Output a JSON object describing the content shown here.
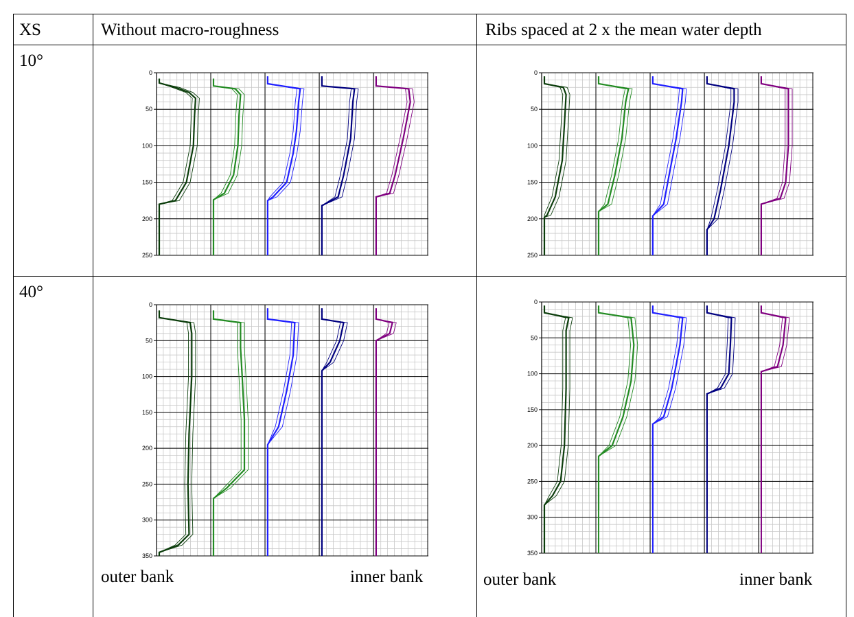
{
  "table": {
    "headers": [
      "XS",
      "Without macro-roughness",
      "Ribs spaced at 2 x the mean water depth"
    ],
    "rows": [
      {
        "label": "10°"
      },
      {
        "label": "40°"
      }
    ],
    "bank_labels": {
      "outer": "outer bank",
      "inner": "inner bank"
    }
  },
  "chart_data": [
    {
      "type": "line",
      "row": "10°",
      "column": "Without macro-roughness",
      "ylim": [
        0,
        250
      ],
      "y_ticks": [
        "0",
        "50",
        "100",
        "150",
        "200",
        "250"
      ],
      "y_inverted": true,
      "x_tick_labels_shown": false,
      "series": [
        {
          "color": "#0b3d0b",
          "bottom": 180,
          "profile": [
            [
              8,
              0.05
            ],
            [
              14,
              0.05
            ],
            [
              20,
              0.35
            ],
            [
              27,
              0.6
            ],
            [
              35,
              0.72
            ],
            [
              60,
              0.7
            ],
            [
              100,
              0.68
            ],
            [
              150,
              0.55
            ],
            [
              175,
              0.35
            ],
            [
              180,
              0.05
            ],
            [
              250,
              0.05
            ]
          ]
        },
        {
          "color": "#228b22",
          "bottom": 174,
          "profile": [
            [
              8,
              0.05
            ],
            [
              18,
              0.05
            ],
            [
              22,
              0.45
            ],
            [
              30,
              0.55
            ],
            [
              60,
              0.52
            ],
            [
              100,
              0.5
            ],
            [
              140,
              0.42
            ],
            [
              165,
              0.25
            ],
            [
              174,
              0.05
            ],
            [
              250,
              0.05
            ]
          ]
        },
        {
          "color": "#1f1fff",
          "bottom": 175,
          "profile": [
            [
              5,
              0.05
            ],
            [
              15,
              0.05
            ],
            [
              22,
              0.65
            ],
            [
              40,
              0.62
            ],
            [
              80,
              0.58
            ],
            [
              110,
              0.52
            ],
            [
              150,
              0.4
            ],
            [
              170,
              0.15
            ],
            [
              175,
              0.05
            ],
            [
              250,
              0.05
            ]
          ]
        },
        {
          "color": "#000080",
          "bottom": 182,
          "profile": [
            [
              5,
              0.05
            ],
            [
              18,
              0.05
            ],
            [
              22,
              0.65
            ],
            [
              40,
              0.62
            ],
            [
              90,
              0.58
            ],
            [
              140,
              0.45
            ],
            [
              170,
              0.35
            ],
            [
              182,
              0.05
            ],
            [
              250,
              0.05
            ]
          ]
        },
        {
          "color": "#800080",
          "bottom": 170,
          "profile": [
            [
              5,
              0.05
            ],
            [
              18,
              0.05
            ],
            [
              22,
              0.65
            ],
            [
              40,
              0.68
            ],
            [
              90,
              0.55
            ],
            [
              140,
              0.4
            ],
            [
              165,
              0.3
            ],
            [
              170,
              0.05
            ],
            [
              250,
              0.05
            ]
          ]
        }
      ]
    },
    {
      "type": "line",
      "row": "10°",
      "column": "Ribs spaced at 2 x the mean water depth",
      "ylim": [
        0,
        250
      ],
      "y_ticks": [
        "0",
        "50",
        "100",
        "150",
        "200",
        "250"
      ],
      "y_inverted": true,
      "x_tick_labels_shown": false,
      "series": [
        {
          "color": "#0b3d0b",
          "bottom": 198,
          "profile": [
            [
              5,
              0.05
            ],
            [
              15,
              0.05
            ],
            [
              20,
              0.4
            ],
            [
              30,
              0.45
            ],
            [
              70,
              0.42
            ],
            [
              120,
              0.38
            ],
            [
              170,
              0.25
            ],
            [
              195,
              0.1
            ],
            [
              198,
              0.05
            ],
            [
              250,
              0.05
            ]
          ]
        },
        {
          "color": "#228b22",
          "bottom": 190,
          "profile": [
            [
              5,
              0.05
            ],
            [
              15,
              0.05
            ],
            [
              22,
              0.6
            ],
            [
              40,
              0.55
            ],
            [
              90,
              0.48
            ],
            [
              140,
              0.35
            ],
            [
              180,
              0.22
            ],
            [
              190,
              0.05
            ],
            [
              250,
              0.05
            ]
          ]
        },
        {
          "color": "#1f1fff",
          "bottom": 196,
          "profile": [
            [
              5,
              0.05
            ],
            [
              15,
              0.05
            ],
            [
              22,
              0.6
            ],
            [
              40,
              0.58
            ],
            [
              90,
              0.48
            ],
            [
              140,
              0.35
            ],
            [
              180,
              0.25
            ],
            [
              196,
              0.05
            ],
            [
              250,
              0.05
            ]
          ]
        },
        {
          "color": "#000080",
          "bottom": 215,
          "profile": [
            [
              5,
              0.05
            ],
            [
              15,
              0.05
            ],
            [
              22,
              0.55
            ],
            [
              40,
              0.55
            ],
            [
              100,
              0.45
            ],
            [
              160,
              0.3
            ],
            [
              200,
              0.18
            ],
            [
              215,
              0.05
            ],
            [
              250,
              0.05
            ]
          ]
        },
        {
          "color": "#800080",
          "bottom": 180,
          "profile": [
            [
              5,
              0.05
            ],
            [
              15,
              0.05
            ],
            [
              22,
              0.55
            ],
            [
              40,
              0.55
            ],
            [
              100,
              0.55
            ],
            [
              150,
              0.5
            ],
            [
              172,
              0.4
            ],
            [
              180,
              0.05
            ],
            [
              250,
              0.05
            ]
          ]
        }
      ]
    },
    {
      "type": "line",
      "row": "40°",
      "column": "Without macro-roughness",
      "ylim": [
        0,
        350
      ],
      "y_ticks": [
        "0",
        "50",
        "100",
        "150",
        "200",
        "250",
        "300",
        "350"
      ],
      "y_inverted": true,
      "x_tick_labels_shown": false,
      "series": [
        {
          "color": "#0b3d0b",
          "bottom": 345,
          "profile": [
            [
              8,
              0.05
            ],
            [
              18,
              0.05
            ],
            [
              25,
              0.62
            ],
            [
              40,
              0.65
            ],
            [
              100,
              0.65
            ],
            [
              180,
              0.6
            ],
            [
              250,
              0.58
            ],
            [
              320,
              0.6
            ],
            [
              335,
              0.4
            ],
            [
              345,
              0.05
            ],
            [
              350,
              0.05
            ]
          ]
        },
        {
          "color": "#228b22",
          "bottom": 285,
          "profile": [
            [
              8,
              0.05
            ],
            [
              20,
              0.05
            ],
            [
              25,
              0.55
            ],
            [
              60,
              0.55
            ],
            [
              100,
              0.58
            ],
            [
              160,
              0.62
            ],
            [
              230,
              0.62
            ],
            [
              255,
              0.3
            ],
            [
              270,
              0.05
            ],
            [
              285,
              0.05
            ],
            [
              350,
              0.05
            ]
          ]
        },
        {
          "color": "#1f1fff",
          "bottom": 200,
          "profile": [
            [
              5,
              0.05
            ],
            [
              20,
              0.05
            ],
            [
              25,
              0.55
            ],
            [
              70,
              0.52
            ],
            [
              120,
              0.4
            ],
            [
              170,
              0.25
            ],
            [
              195,
              0.05
            ],
            [
              200,
              0.05
            ],
            [
              350,
              0.05
            ]
          ]
        },
        {
          "color": "#000080",
          "bottom": 92,
          "profile": [
            [
              5,
              0.05
            ],
            [
              20,
              0.05
            ],
            [
              25,
              0.45
            ],
            [
              50,
              0.38
            ],
            [
              80,
              0.2
            ],
            [
              92,
              0.05
            ],
            [
              350,
              0.05
            ]
          ]
        },
        {
          "color": "#800080",
          "bottom": 50,
          "profile": [
            [
              5,
              0.05
            ],
            [
              20,
              0.05
            ],
            [
              25,
              0.35
            ],
            [
              40,
              0.3
            ],
            [
              50,
              0.05
            ],
            [
              350,
              0.05
            ]
          ]
        }
      ]
    },
    {
      "type": "line",
      "row": "40°",
      "column": "Ribs spaced at 2 x the mean water depth",
      "ylim": [
        0,
        350
      ],
      "y_ticks": [
        "0",
        "50",
        "100",
        "150",
        "200",
        "250",
        "300",
        "350"
      ],
      "y_inverted": true,
      "x_tick_labels_shown": false,
      "series": [
        {
          "color": "#0b3d0b",
          "bottom": 283,
          "profile": [
            [
              5,
              0.05
            ],
            [
              15,
              0.05
            ],
            [
              22,
              0.5
            ],
            [
              40,
              0.45
            ],
            [
              120,
              0.45
            ],
            [
              200,
              0.42
            ],
            [
              250,
              0.35
            ],
            [
              270,
              0.2
            ],
            [
              283,
              0.05
            ],
            [
              350,
              0.05
            ]
          ]
        },
        {
          "color": "#228b22",
          "bottom": 290,
          "profile": [
            [
              5,
              0.05
            ],
            [
              15,
              0.05
            ],
            [
              22,
              0.65
            ],
            [
              60,
              0.7
            ],
            [
              110,
              0.65
            ],
            [
              160,
              0.5
            ],
            [
              200,
              0.3
            ],
            [
              215,
              0.05
            ],
            [
              230,
              0.05
            ],
            [
              290,
              0.05
            ]
          ]
        },
        {
          "color": "#1f1fff",
          "bottom": 290,
          "profile": [
            [
              5,
              0.05
            ],
            [
              15,
              0.05
            ],
            [
              22,
              0.6
            ],
            [
              60,
              0.55
            ],
            [
              120,
              0.4
            ],
            [
              160,
              0.25
            ],
            [
              170,
              0.05
            ],
            [
              290,
              0.05
            ]
          ]
        },
        {
          "color": "#000080",
          "bottom": 290,
          "profile": [
            [
              5,
              0.05
            ],
            [
              15,
              0.05
            ],
            [
              22,
              0.5
            ],
            [
              60,
              0.48
            ],
            [
              100,
              0.45
            ],
            [
              120,
              0.3
            ],
            [
              128,
              0.05
            ],
            [
              290,
              0.05
            ]
          ]
        },
        {
          "color": "#800080",
          "bottom": 290,
          "profile": [
            [
              5,
              0.05
            ],
            [
              15,
              0.05
            ],
            [
              22,
              0.5
            ],
            [
              60,
              0.45
            ],
            [
              90,
              0.35
            ],
            [
              97,
              0.05
            ],
            [
              290,
              0.05
            ]
          ]
        }
      ]
    }
  ]
}
